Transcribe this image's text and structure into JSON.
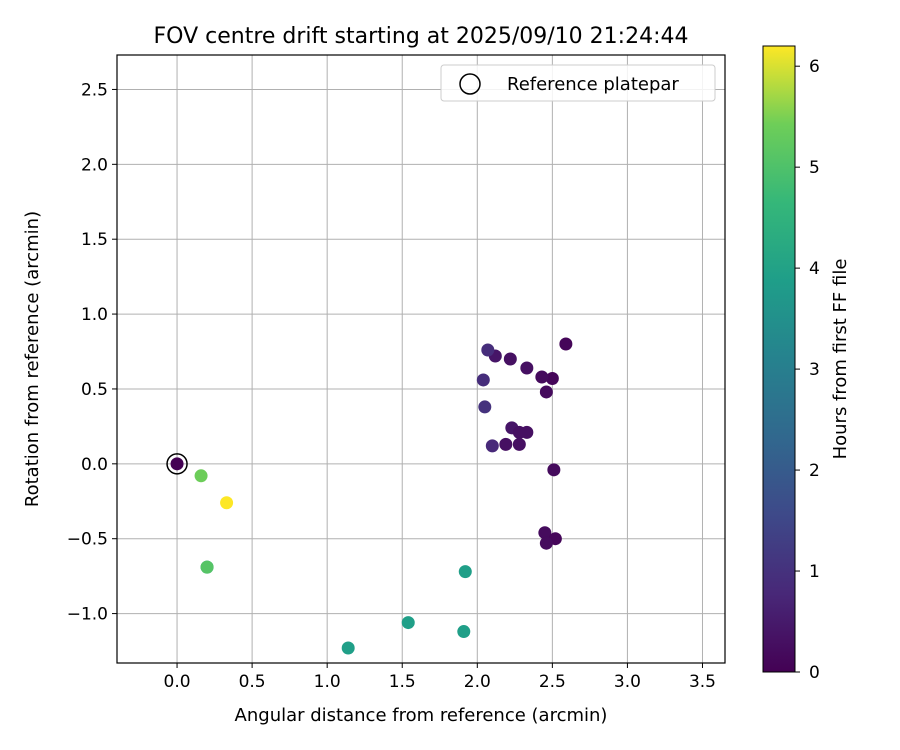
{
  "chart_data": {
    "type": "scatter",
    "title": "FOV centre drift starting at 2025/09/10 21:24:44",
    "xlabel": "Angular distance from reference (arcmin)",
    "ylabel": "Rotation from reference (arcmin)",
    "xlim": [
      -0.4,
      3.65
    ],
    "ylim": [
      -1.33,
      2.73
    ],
    "x_ticks": [
      0.0,
      0.5,
      1.0,
      1.5,
      2.0,
      2.5,
      3.0,
      3.5
    ],
    "x_tick_labels": [
      "0.0",
      "0.5",
      "1.0",
      "1.5",
      "2.0",
      "2.5",
      "3.0",
      "3.5"
    ],
    "y_ticks": [
      -1.0,
      -0.5,
      0.0,
      0.5,
      1.0,
      1.5,
      2.0,
      2.5
    ],
    "y_tick_labels": [
      "−1.0",
      "−0.5",
      "0.0",
      "0.5",
      "1.0",
      "1.5",
      "2.0",
      "2.5"
    ],
    "grid": true,
    "legend": {
      "placement": "top-right",
      "entries": [
        "Reference platepar"
      ]
    },
    "colorbar": {
      "label": "Hours from first FF file",
      "range": [
        0,
        6.2
      ],
      "ticks": [
        0,
        1,
        2,
        3,
        4,
        5,
        6
      ],
      "tick_labels": [
        "0",
        "1",
        "2",
        "3",
        "4",
        "5",
        "6"
      ],
      "colormap": "viridis"
    },
    "reference_point": {
      "x": 0.0,
      "y": 0.0
    },
    "points": [
      {
        "x": 0.0,
        "y": 0.0,
        "hours": 0.0
      },
      {
        "x": 2.59,
        "y": 0.8,
        "hours": 0.1
      },
      {
        "x": 2.5,
        "y": 0.57,
        "hours": 0.1
      },
      {
        "x": 2.43,
        "y": 0.58,
        "hours": 0.2
      },
      {
        "x": 2.46,
        "y": 0.48,
        "hours": 0.2
      },
      {
        "x": 2.33,
        "y": 0.64,
        "hours": 0.3
      },
      {
        "x": 2.22,
        "y": 0.7,
        "hours": 0.3
      },
      {
        "x": 2.12,
        "y": 0.72,
        "hours": 0.4
      },
      {
        "x": 2.07,
        "y": 0.76,
        "hours": 0.9
      },
      {
        "x": 2.04,
        "y": 0.56,
        "hours": 0.9
      },
      {
        "x": 2.05,
        "y": 0.38,
        "hours": 1.0
      },
      {
        "x": 2.23,
        "y": 0.24,
        "hours": 0.4
      },
      {
        "x": 2.28,
        "y": 0.21,
        "hours": 0.3
      },
      {
        "x": 2.33,
        "y": 0.21,
        "hours": 0.3
      },
      {
        "x": 2.19,
        "y": 0.13,
        "hours": 0.3
      },
      {
        "x": 2.28,
        "y": 0.13,
        "hours": 0.3
      },
      {
        "x": 2.1,
        "y": 0.12,
        "hours": 0.8
      },
      {
        "x": 2.51,
        "y": -0.04,
        "hours": 0.2
      },
      {
        "x": 2.45,
        "y": -0.46,
        "hours": 0.2
      },
      {
        "x": 2.52,
        "y": -0.5,
        "hours": 0.1
      },
      {
        "x": 2.46,
        "y": -0.53,
        "hours": 0.2
      },
      {
        "x": 1.92,
        "y": -0.72,
        "hours": 3.9
      },
      {
        "x": 1.54,
        "y": -1.06,
        "hours": 3.9
      },
      {
        "x": 1.91,
        "y": -1.12,
        "hours": 3.9
      },
      {
        "x": 1.14,
        "y": -1.23,
        "hours": 3.9
      },
      {
        "x": 0.16,
        "y": -0.08,
        "hours": 5.4
      },
      {
        "x": 0.33,
        "y": -0.26,
        "hours": 6.2
      },
      {
        "x": 0.2,
        "y": -0.69,
        "hours": 3.9
      },
      {
        "x": 0.2,
        "y": -0.69,
        "hours": 5.1
      }
    ]
  }
}
